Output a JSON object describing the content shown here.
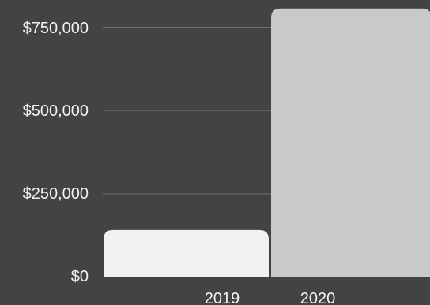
{
  "chart_data": {
    "type": "bar",
    "title": "",
    "xlabel": "",
    "ylabel": "",
    "categories": [
      "2019",
      "2020"
    ],
    "values": [
      140000,
      805000
    ],
    "ylim": [
      0,
      750000
    ],
    "yticks": [
      {
        "value": 0,
        "label": "$0"
      },
      {
        "value": 250000,
        "label": "$250,000"
      },
      {
        "value": 500000,
        "label": "$500,000"
      },
      {
        "value": 750000,
        "label": "$750,000"
      }
    ],
    "grid": true,
    "bar_colors": [
      "#f2f2f2",
      "#c9c9c9"
    ],
    "background": "#434244"
  }
}
